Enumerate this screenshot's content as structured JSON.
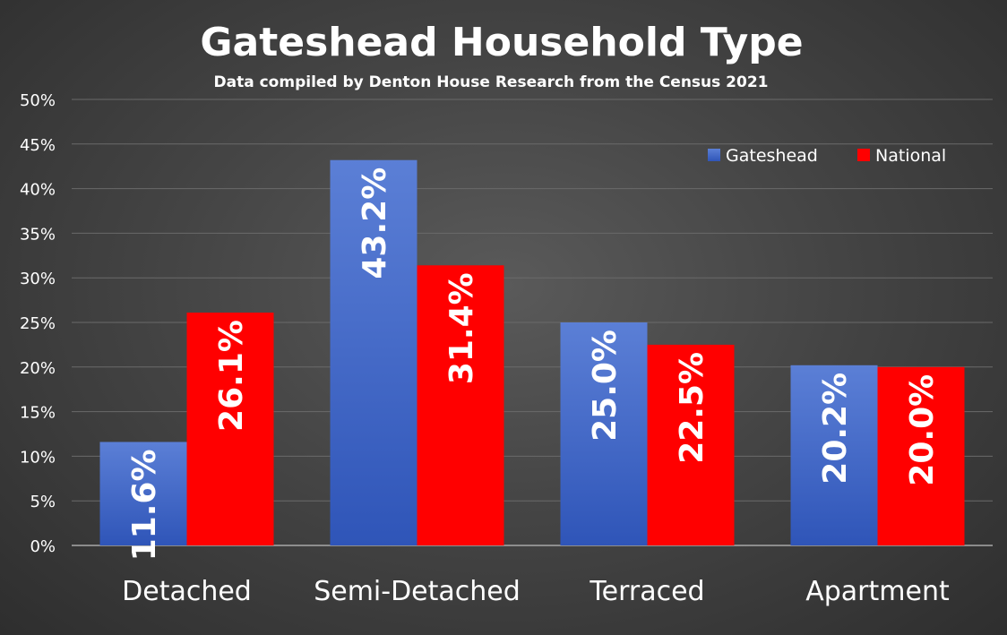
{
  "chart_data": {
    "type": "bar",
    "title": "Gateshead Household Type",
    "subtitle": "Data compiled by Denton House Research from the Census 2021",
    "categories": [
      "Detached",
      "Semi-Detached",
      "Terraced",
      "Apartment"
    ],
    "series": [
      {
        "name": "Gateshead",
        "values": [
          11.6,
          43.2,
          25.0,
          20.2
        ],
        "labels": [
          "11.6%",
          "43.2%",
          "25.0%",
          "20.2%"
        ],
        "color": "#3f62c2"
      },
      {
        "name": "National",
        "values": [
          26.1,
          31.4,
          22.5,
          20.0
        ],
        "labels": [
          "26.1%",
          "31.4%",
          "22.5%",
          "20.0%"
        ],
        "color": "#ff0000"
      }
    ],
    "ylim": [
      0,
      50
    ],
    "yticks": [
      0,
      5,
      10,
      15,
      20,
      25,
      30,
      35,
      40,
      45,
      50
    ],
    "ytick_labels": [
      "0%",
      "5%",
      "10%",
      "15%",
      "20%",
      "25%",
      "30%",
      "35%",
      "40%",
      "45%",
      "50%"
    ],
    "grid": true,
    "legend_position": "top-right"
  }
}
